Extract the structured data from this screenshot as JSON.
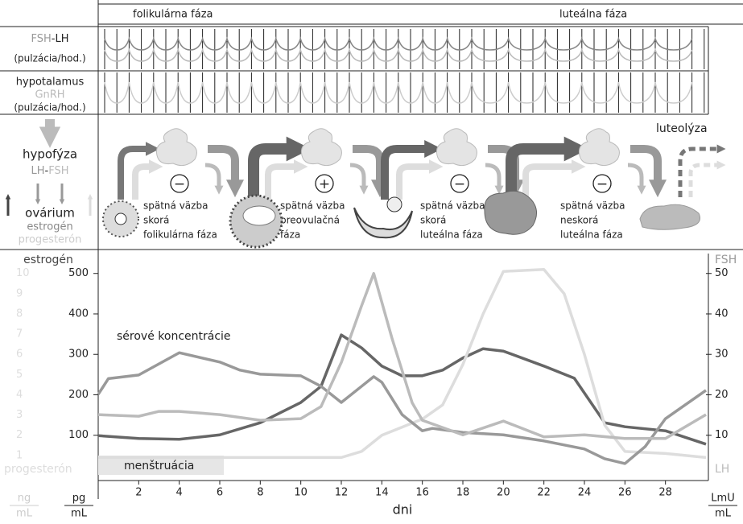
{
  "header": {
    "phases": [
      "folikulárna fáza",
      "luteálna fáza"
    ]
  },
  "rows": {
    "fsh_lh": [
      "FSH",
      "-LH"
    ],
    "fsh_lh_unit": "(pulzácia/hod.)",
    "hypothalamus": "hypotalamus",
    "gnrh": "GnRH",
    "gnrh_unit": "(pulzácia/hod.)"
  },
  "diagram": {
    "pituitary": "hypofýza",
    "lh_fsh": [
      "LH",
      "-",
      "FSH"
    ],
    "ovary": "ovárium",
    "estrogen": "estrogén",
    "progesterone": "progesterón",
    "signs": [
      "−",
      "+",
      "−",
      "−"
    ],
    "stages": [
      [
        "spätná väzba",
        "skorá",
        "folikulárna fáza"
      ],
      [
        "spätná väzba",
        "preovulačná",
        "fáza"
      ],
      [
        "spätná väzba",
        "skorá",
        "luteálna fáza"
      ],
      [
        "spätná väzba",
        "neskorá",
        "luteálna fáza"
      ]
    ],
    "luteolysis": "luteolýza"
  },
  "chart_data": {
    "type": "line",
    "title": "sérové koncentrácie",
    "xlabel": "dni",
    "xlim": [
      0,
      30
    ],
    "xticks": [
      2,
      4,
      6,
      8,
      10,
      12,
      14,
      16,
      18,
      20,
      22,
      24,
      26,
      28
    ],
    "ylim": [
      0,
      550
    ],
    "yticks": [
      100,
      200,
      300,
      400,
      500
    ],
    "y_unit": [
      "pg",
      "mL"
    ],
    "y2lim": [
      0,
      55
    ],
    "y2ticks": [
      10,
      20,
      30,
      40,
      50
    ],
    "y2_unit": [
      "LmU",
      "mL"
    ],
    "y3lim": [
      0,
      11
    ],
    "y3ticks": [
      1,
      2,
      3,
      4,
      5,
      6,
      7,
      8,
      9,
      10
    ],
    "y3_unit": [
      "ng",
      "mL"
    ],
    "annotations": [
      {
        "text": "menštruácia",
        "x": [
          0,
          6.2
        ]
      }
    ],
    "series": [
      {
        "name": "estrogén",
        "color": "#666666",
        "axis": "y",
        "x": [
          0,
          2,
          4,
          6,
          8,
          10,
          11,
          12,
          13,
          14,
          15,
          16,
          17,
          18,
          19,
          20,
          22,
          23.5,
          25,
          26,
          28,
          30
        ],
        "values": [
          99,
          92,
          90,
          101,
          131,
          181,
          221,
          348,
          316,
          271,
          247,
          247,
          261,
          291,
          314,
          308,
          271,
          241,
          131,
          121,
          111,
          78
        ]
      },
      {
        "name": "progesterón",
        "color": "#dddddd",
        "axis": "y3",
        "x": [
          0,
          4,
          8,
          10,
          12,
          13,
          14,
          16,
          17,
          18,
          19,
          20,
          22,
          23,
          24,
          25,
          26,
          28,
          30
        ],
        "values": [
          0.9,
          0.9,
          0.9,
          0.9,
          0.9,
          1.2,
          2,
          2.8,
          3.5,
          5.5,
          8,
          10.1,
          10.2,
          9,
          6,
          2.5,
          1.2,
          1.1,
          0.9
        ]
      },
      {
        "name": "FSH",
        "color": "#999999",
        "axis": "y2",
        "x": [
          0,
          0.5,
          2,
          4,
          6,
          7,
          8,
          10,
          11,
          12,
          13,
          13.6,
          14,
          15,
          16,
          16.5,
          18,
          20,
          22,
          24,
          25,
          26,
          27,
          28,
          30
        ],
        "values": [
          20.1,
          24,
          24.9,
          30.4,
          28.1,
          26.1,
          25.1,
          24.7,
          22.1,
          18.1,
          22.1,
          24.5,
          23.1,
          15.1,
          11.1,
          11.7,
          10.7,
          10.1,
          8.6,
          6.6,
          4.2,
          3,
          7.2,
          14.1,
          21.1
        ]
      },
      {
        "name": "LH",
        "color": "#bbbbbb",
        "axis": "y2",
        "x": [
          0,
          2,
          3,
          4,
          6,
          8,
          10,
          11,
          12,
          13,
          13.6,
          14.5,
          15.5,
          16,
          18,
          20,
          22,
          24,
          26,
          28,
          30
        ],
        "values": [
          15.1,
          14.7,
          15.9,
          15.9,
          15.1,
          13.7,
          14.1,
          17.1,
          28,
          42,
          50,
          34,
          18,
          13.7,
          10.1,
          13.5,
          9.6,
          10.1,
          9.2,
          9.2,
          15.1
        ]
      }
    ]
  }
}
